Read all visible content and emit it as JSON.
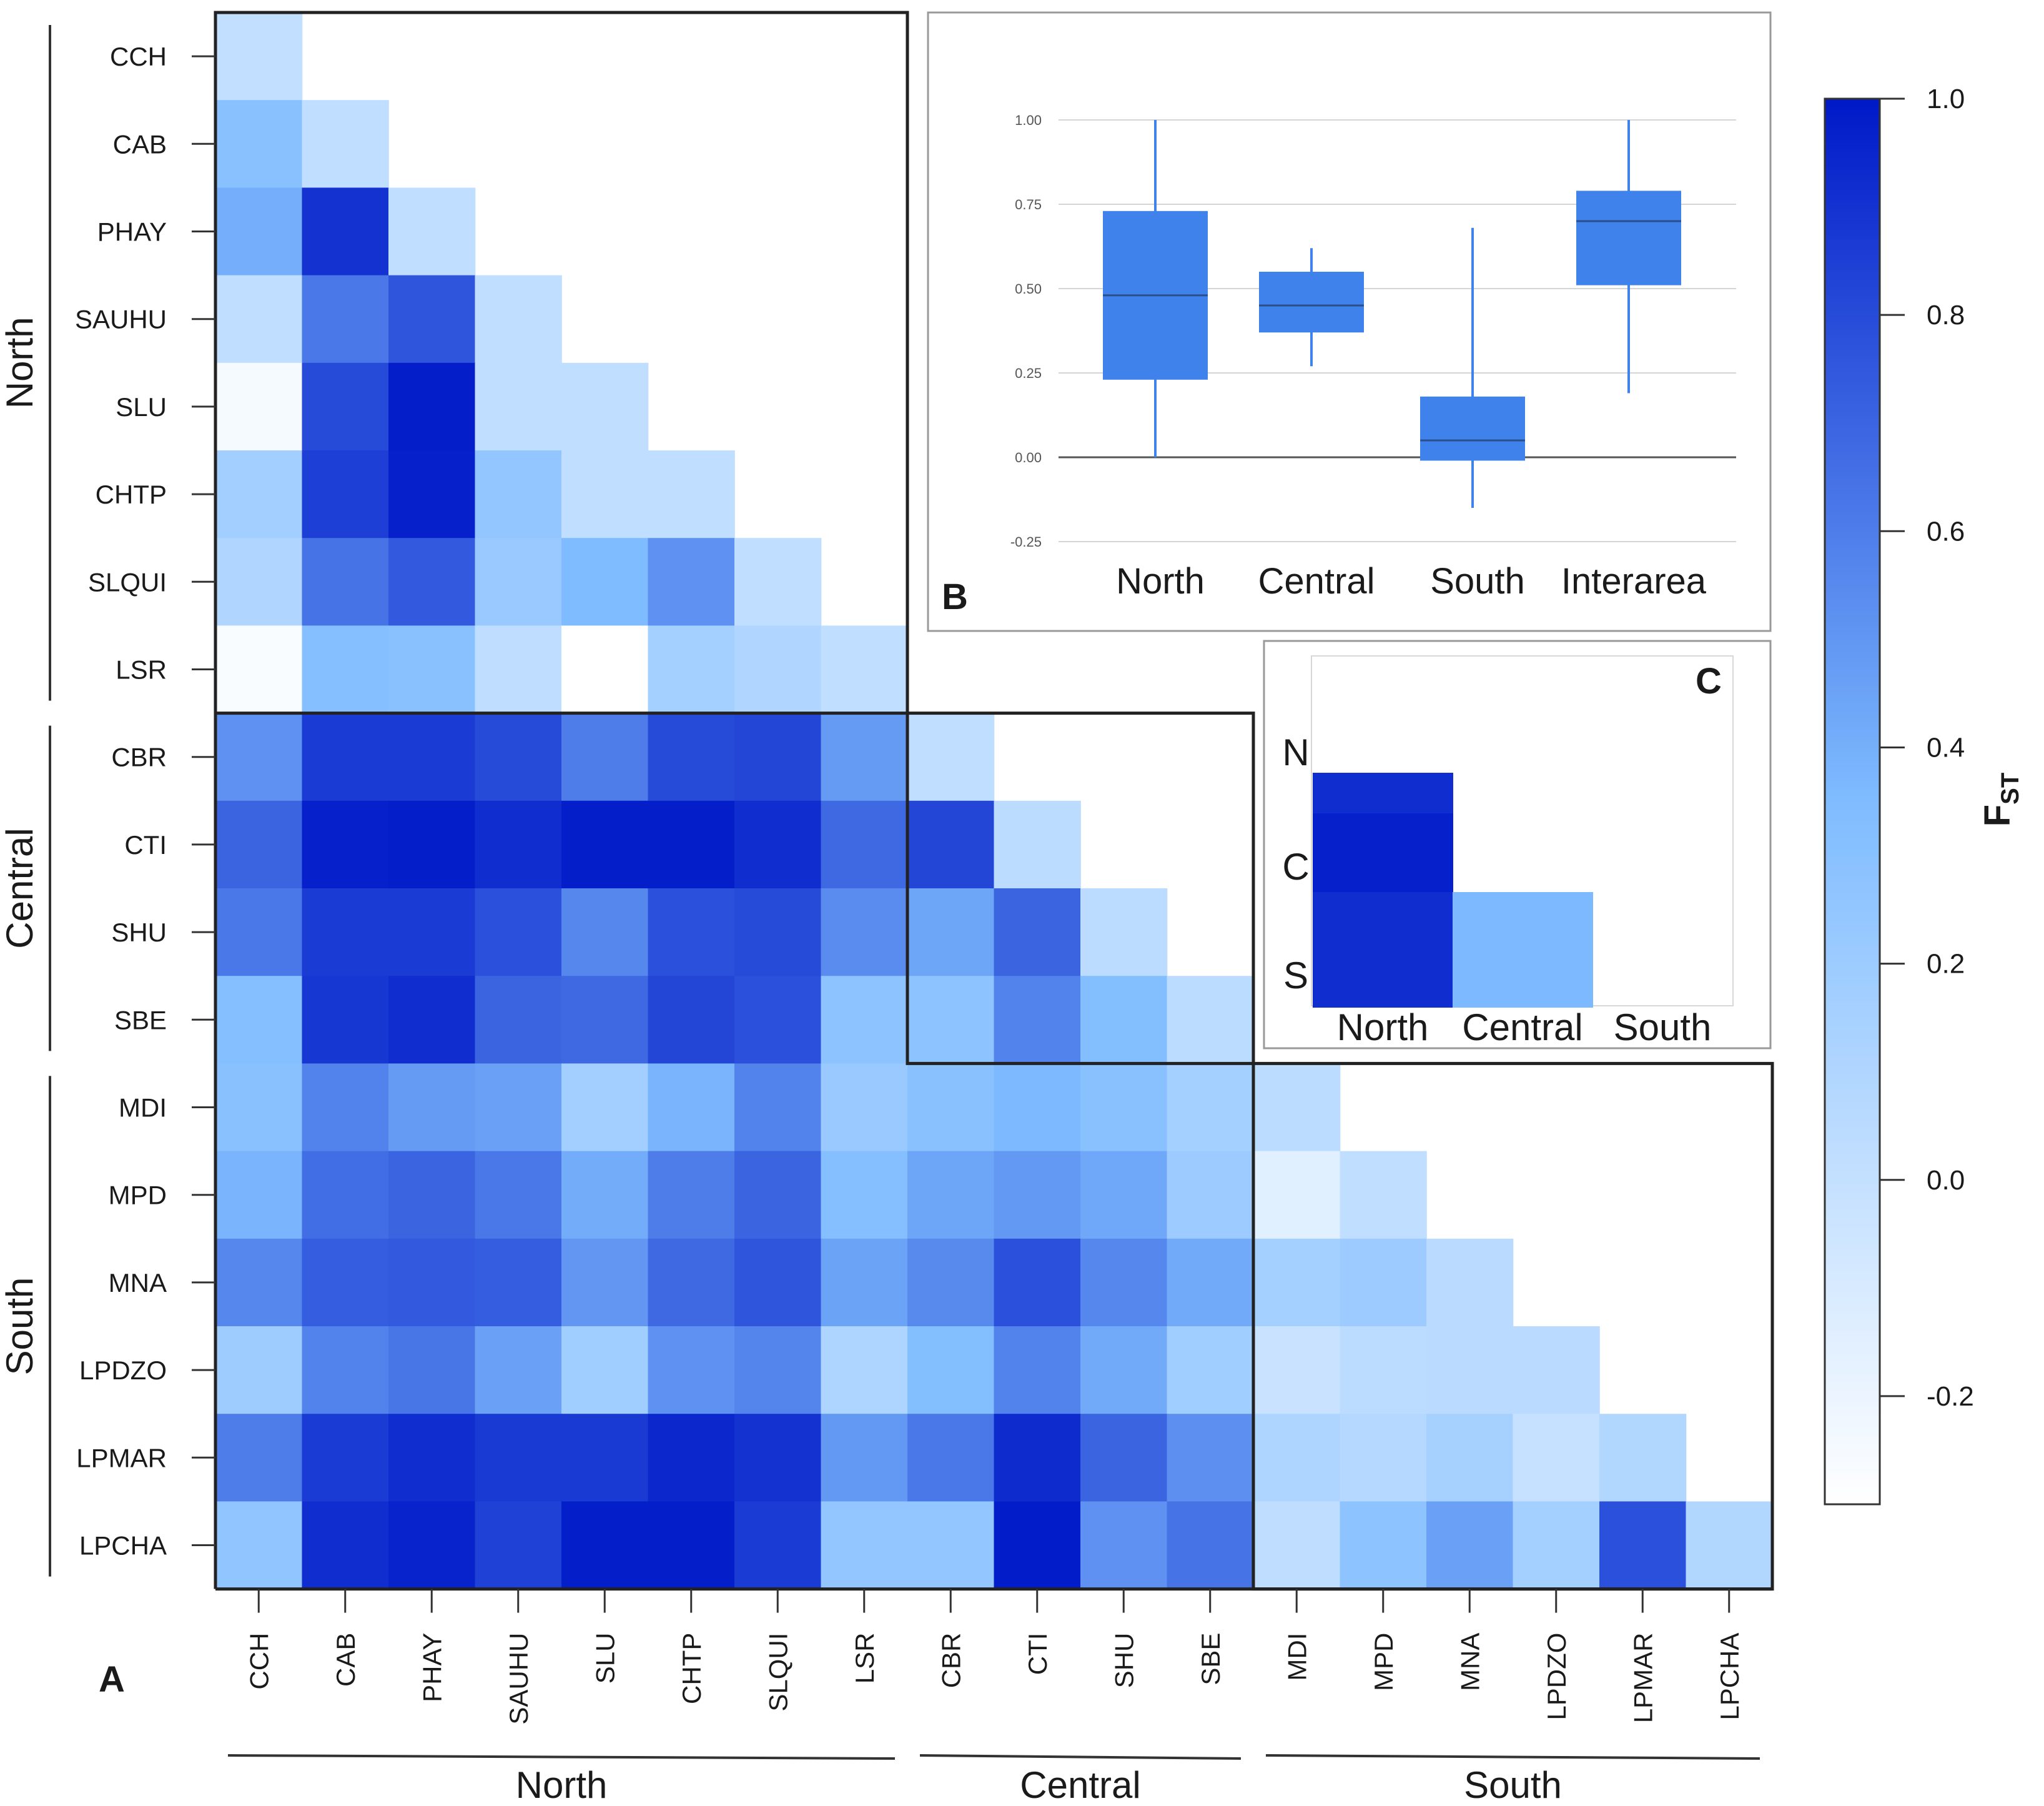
{
  "chart_data": [
    {
      "panel": "A",
      "type": "heatmap",
      "title": "",
      "populations": [
        "CCH",
        "CAB",
        "PHAY",
        "SAUHU",
        "SLU",
        "CHTP",
        "SLQUI",
        "LSR",
        "CBR",
        "CTI",
        "SHU",
        "SBE",
        "MDI",
        "MPD",
        "MNA",
        "LPDZO",
        "LPMAR",
        "LPCHA"
      ],
      "groups": [
        {
          "name": "North",
          "count": 8
        },
        {
          "name": "Central",
          "count": 4
        },
        {
          "name": "South",
          "count": 6
        }
      ],
      "rows": [
        [
          0.01
        ],
        [
          0.3,
          0.02
        ],
        [
          0.4,
          0.9,
          0.02
        ],
        [
          0.02,
          0.62,
          0.76,
          0.02
        ],
        [
          -0.25,
          0.8,
          0.98,
          0.02,
          0.02
        ],
        [
          0.17,
          0.85,
          0.97,
          0.25,
          0.02,
          0.02
        ],
        [
          0.1,
          0.64,
          0.74,
          0.22,
          0.35,
          0.52,
          0.02
        ],
        [
          -0.27,
          0.32,
          0.3,
          0.03,
          -0.3,
          0.16,
          0.1,
          0.02
        ],
        [
          0.52,
          0.86,
          0.86,
          0.8,
          0.6,
          0.8,
          0.82,
          0.48,
          0.02
        ],
        [
          0.7,
          0.97,
          0.98,
          0.92,
          0.98,
          0.98,
          0.92,
          0.68,
          0.82,
          0.04
        ],
        [
          0.62,
          0.86,
          0.86,
          0.78,
          0.56,
          0.78,
          0.8,
          0.54,
          0.44,
          0.7,
          0.04
        ],
        [
          0.32,
          0.88,
          0.92,
          0.7,
          0.68,
          0.82,
          0.78,
          0.28,
          0.28,
          0.58,
          0.33,
          0.04
        ],
        [
          0.3,
          0.58,
          0.48,
          0.46,
          0.17,
          0.38,
          0.58,
          0.22,
          0.3,
          0.36,
          0.3,
          0.16,
          0.04
        ],
        [
          0.38,
          0.66,
          0.7,
          0.62,
          0.41,
          0.6,
          0.7,
          0.32,
          0.44,
          0.49,
          0.43,
          0.2,
          -0.15,
          0.02
        ],
        [
          0.56,
          0.73,
          0.74,
          0.73,
          0.5,
          0.68,
          0.76,
          0.45,
          0.55,
          0.78,
          0.56,
          0.42,
          0.16,
          0.2,
          0.05
        ],
        [
          0.19,
          0.58,
          0.63,
          0.46,
          0.18,
          0.52,
          0.57,
          0.11,
          0.33,
          0.58,
          0.42,
          0.18,
          -0.02,
          0.04,
          0.05,
          0.05
        ],
        [
          0.6,
          0.86,
          0.92,
          0.87,
          0.87,
          0.94,
          0.9,
          0.49,
          0.62,
          0.93,
          0.7,
          0.53,
          0.11,
          0.08,
          0.15,
          -0.01,
          0.09
        ],
        [
          0.26,
          0.92,
          0.96,
          0.84,
          0.98,
          0.98,
          0.86,
          0.25,
          0.25,
          0.99,
          0.52,
          0.64,
          0.03,
          0.28,
          0.46,
          0.16,
          0.78,
          0.09
        ]
      ],
      "colorbar": {
        "label": "F",
        "subscript": "ST",
        "min": -0.3,
        "max": 1.0,
        "ticks": [
          1.0,
          0.8,
          0.6,
          0.4,
          0.2,
          0.0,
          -0.2
        ],
        "low_color": "#ffffff",
        "high_color": "#0019c8"
      },
      "panel_label": "A"
    },
    {
      "panel": "B",
      "type": "box",
      "categories": [
        "North",
        "Central",
        "South",
        "Interarea"
      ],
      "boxes": [
        {
          "whisker_low": 0.0,
          "q1": 0.23,
          "median": 0.48,
          "q3": 0.73,
          "whisker_high": 1.0
        },
        {
          "whisker_low": 0.27,
          "q1": 0.37,
          "median": 0.45,
          "q3": 0.55,
          "whisker_high": 0.62
        },
        {
          "whisker_low": -0.15,
          "q1": -0.01,
          "median": 0.05,
          "q3": 0.18,
          "whisker_high": 0.68
        },
        {
          "whisker_low": 0.19,
          "q1": 0.51,
          "median": 0.7,
          "q3": 0.79,
          "whisker_high": 1.0
        }
      ],
      "y_ticks": [
        "1.00",
        "0.75",
        "0.50",
        "0.25",
        "0.00",
        "-0.25"
      ],
      "ylim": [
        -0.25,
        1.0
      ],
      "color": "#3f82ec",
      "panel_label": "B"
    },
    {
      "panel": "C",
      "type": "heatmap",
      "rows": [
        "N",
        "C",
        "S"
      ],
      "columns": [
        "North",
        "Central",
        "South"
      ],
      "cells": [
        {
          "row": "N",
          "column": "North",
          "value": 0.92
        },
        {
          "row": "C",
          "column": "North",
          "value": 0.97
        },
        {
          "row": "S",
          "column": "North",
          "value": 0.92
        },
        {
          "row": "S",
          "column": "Central",
          "value": 0.36
        }
      ],
      "panel_label": "C"
    }
  ]
}
